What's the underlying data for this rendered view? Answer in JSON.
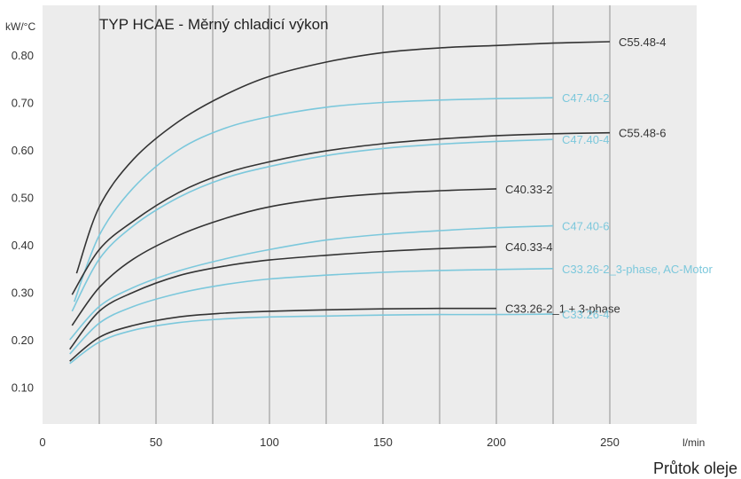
{
  "chart_data": {
    "type": "line",
    "title": "TYP HCAE - Měrný chladicí výkon",
    "ylabel": "kW/°C",
    "xlabel": "Průtok oleje",
    "xunit": "l/min",
    "xlim": [
      0,
      275
    ],
    "ylim": [
      0,
      0.9
    ],
    "x_ticks": [
      0,
      50,
      100,
      150,
      200,
      250
    ],
    "y_ticks": [
      0.1,
      0.2,
      0.3,
      0.4,
      0.5,
      0.6,
      0.7,
      0.8
    ],
    "grid": {
      "vertical_every": 25,
      "horizontal": false
    },
    "colors": {
      "dark": "#333333",
      "light": "#7cc8dc",
      "grid": "#aaaaaa",
      "plot_bg": "#ececec"
    },
    "series": [
      {
        "name": "C55.48-4",
        "color": "#333333",
        "x": [
          15,
          25,
          40,
          60,
          80,
          100,
          125,
          150,
          175,
          200,
          225,
          250
        ],
        "y": [
          0.34,
          0.48,
          0.58,
          0.66,
          0.715,
          0.755,
          0.785,
          0.805,
          0.815,
          0.82,
          0.825,
          0.828
        ]
      },
      {
        "name": "C47.40-2",
        "color": "#7cc8dc",
        "x": [
          14,
          25,
          40,
          60,
          80,
          100,
          125,
          150,
          175,
          200,
          225
        ],
        "y": [
          0.28,
          0.42,
          0.52,
          0.6,
          0.645,
          0.67,
          0.69,
          0.7,
          0.705,
          0.708,
          0.71
        ]
      },
      {
        "name": "C55.48-6",
        "color": "#333333",
        "x": [
          13,
          25,
          40,
          60,
          80,
          100,
          125,
          150,
          175,
          200,
          225,
          250
        ],
        "y": [
          0.295,
          0.39,
          0.45,
          0.51,
          0.55,
          0.575,
          0.598,
          0.613,
          0.623,
          0.63,
          0.634,
          0.636
        ]
      },
      {
        "name": "C47.40-4",
        "color": "#7cc8dc",
        "x": [
          13,
          25,
          40,
          60,
          80,
          100,
          125,
          150,
          175,
          200,
          225
        ],
        "y": [
          0.26,
          0.37,
          0.44,
          0.5,
          0.54,
          0.565,
          0.588,
          0.603,
          0.612,
          0.618,
          0.622
        ]
      },
      {
        "name": "C40.33-2",
        "color": "#333333",
        "x": [
          13,
          25,
          40,
          60,
          80,
          100,
          125,
          150,
          175,
          200
        ],
        "y": [
          0.23,
          0.31,
          0.37,
          0.42,
          0.455,
          0.48,
          0.498,
          0.508,
          0.514,
          0.518
        ]
      },
      {
        "name": "C47.40-6",
        "color": "#7cc8dc",
        "x": [
          12,
          25,
          40,
          60,
          80,
          100,
          125,
          150,
          175,
          200,
          225
        ],
        "y": [
          0.2,
          0.27,
          0.31,
          0.345,
          0.37,
          0.39,
          0.41,
          0.422,
          0.43,
          0.436,
          0.44
        ]
      },
      {
        "name": "C40.33-4",
        "color": "#333333",
        "x": [
          12,
          25,
          40,
          60,
          80,
          100,
          125,
          150,
          175,
          200
        ],
        "y": [
          0.18,
          0.26,
          0.3,
          0.335,
          0.355,
          0.368,
          0.378,
          0.386,
          0.392,
          0.396
        ]
      },
      {
        "name": "C33.26-2_3-phase, AC-Motor",
        "color": "#7cc8dc",
        "x": [
          12,
          25,
          40,
          60,
          80,
          100,
          125,
          150,
          175,
          200,
          225
        ],
        "y": [
          0.17,
          0.235,
          0.27,
          0.298,
          0.316,
          0.328,
          0.336,
          0.342,
          0.346,
          0.348,
          0.35
        ]
      },
      {
        "name": "C33.26-2_1 + 3-phase",
        "color": "#333333",
        "x": [
          12,
          25,
          40,
          60,
          80,
          100,
          125,
          150,
          175,
          200
        ],
        "y": [
          0.155,
          0.205,
          0.23,
          0.248,
          0.256,
          0.26,
          0.263,
          0.265,
          0.266,
          0.266
        ]
      },
      {
        "name": "C33.26-4",
        "color": "#7cc8dc",
        "x": [
          12,
          25,
          40,
          60,
          80,
          100,
          125,
          150,
          175,
          200,
          225
        ],
        "y": [
          0.15,
          0.195,
          0.22,
          0.236,
          0.244,
          0.248,
          0.25,
          0.252,
          0.253,
          0.253,
          0.254
        ]
      }
    ]
  }
}
